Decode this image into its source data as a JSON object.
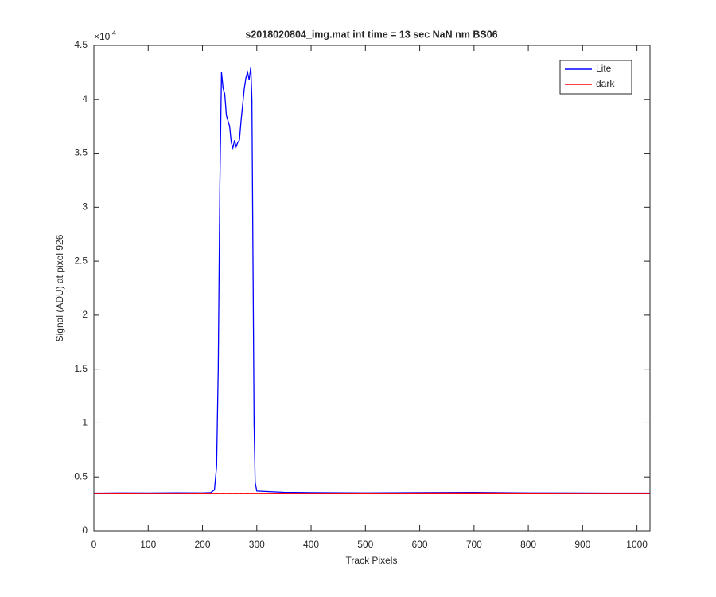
{
  "chart_data": {
    "type": "line",
    "title": "s2018020804_img.mat int time = 13 sec  NaN nm BS06",
    "x_label": "Track Pixels",
    "y_label": "Signal (ADU) at pixel 926",
    "y_multiplier": "×10",
    "y_multiplier_exponent": "4",
    "x": [
      0,
      50,
      100,
      150,
      200,
      215,
      222,
      226,
      229,
      232,
      235,
      238,
      241,
      244,
      247,
      250,
      253,
      256,
      259,
      262,
      265,
      268,
      271,
      274,
      277,
      280,
      283,
      286,
      289,
      291,
      293,
      295,
      297,
      300,
      350,
      400,
      500,
      600,
      700,
      800,
      900,
      1000,
      1024
    ],
    "series": [
      {
        "name": "Lite",
        "color": "#0000ff",
        "values": [
          0.35,
          0.352,
          0.351,
          0.353,
          0.352,
          0.355,
          0.38,
          0.6,
          1.5,
          3.2,
          4.25,
          4.1,
          4.05,
          3.85,
          3.8,
          3.75,
          3.6,
          3.55,
          3.62,
          3.56,
          3.6,
          3.62,
          3.8,
          3.95,
          4.1,
          4.2,
          4.25,
          4.18,
          4.3,
          4.0,
          2.5,
          1.0,
          0.45,
          0.37,
          0.358,
          0.355,
          0.352,
          0.355,
          0.357,
          0.352,
          0.351,
          0.35,
          0.35
        ]
      },
      {
        "name": "dark",
        "color": "#ff0000",
        "values": [
          0.348,
          0.349,
          0.348,
          0.348,
          0.349,
          0.348,
          0.348,
          0.349,
          0.348,
          0.348,
          0.348,
          0.349,
          0.348,
          0.348,
          0.348,
          0.349,
          0.348,
          0.348,
          0.348,
          0.349,
          0.348,
          0.348,
          0.349,
          0.348,
          0.348,
          0.348,
          0.349,
          0.348,
          0.348,
          0.348,
          0.349,
          0.348,
          0.348,
          0.348,
          0.349,
          0.348,
          0.349,
          0.35,
          0.351,
          0.349,
          0.348,
          0.348,
          0.348
        ]
      }
    ],
    "xlim": [
      0,
      1024
    ],
    "ylim": [
      0,
      4.5
    ],
    "xticks": [
      0,
      100,
      200,
      300,
      400,
      500,
      600,
      700,
      800,
      900,
      1000
    ],
    "yticks": [
      0,
      0.5,
      1,
      1.5,
      2,
      2.5,
      3,
      3.5,
      4,
      4.5
    ],
    "legend": "upper right",
    "grid": false
  }
}
